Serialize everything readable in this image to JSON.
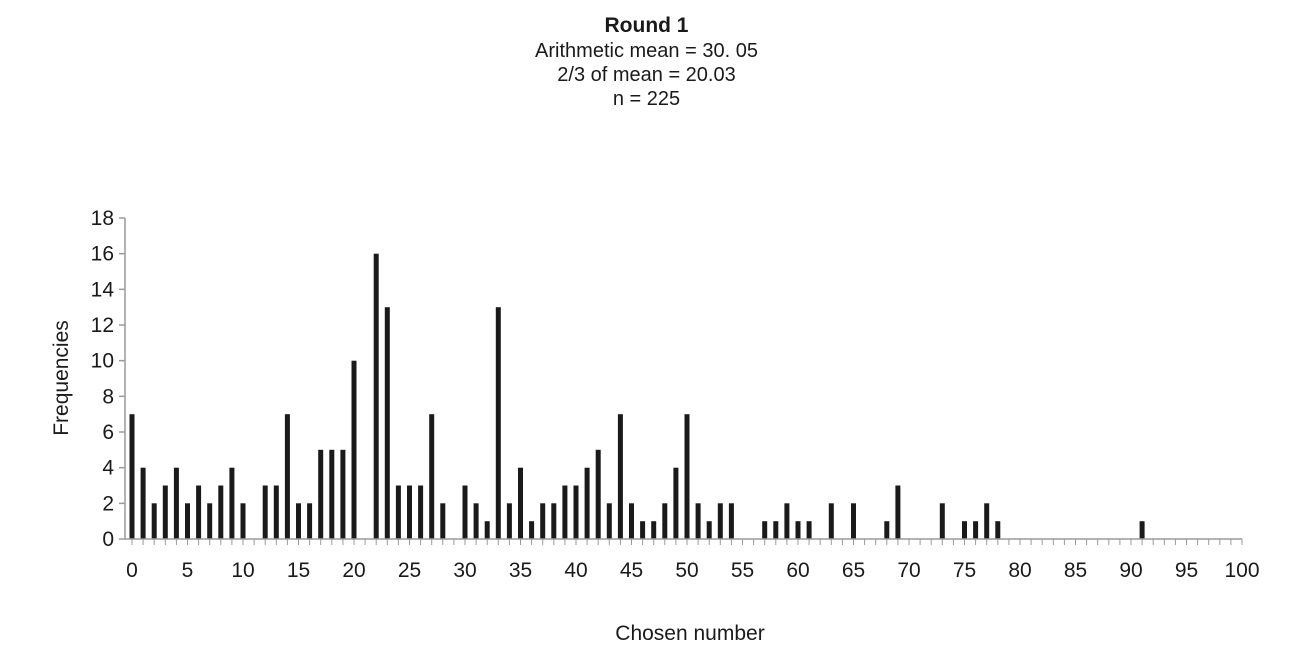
{
  "chart_data": {
    "type": "bar",
    "title": "Round 1",
    "subtitle_lines": [
      "Arithmetic mean = 30. 05",
      "2/3 of mean = 20.03",
      "n = 225"
    ],
    "xlabel": "Chosen number",
    "ylabel": "Frequencies",
    "xlim": [
      0,
      100
    ],
    "ylim": [
      0,
      18
    ],
    "x_ticks": [
      "0",
      "5",
      "10",
      "15",
      "20",
      "25",
      "30",
      "35",
      "40",
      "45",
      "50",
      "55",
      "60",
      "65",
      "70",
      "75",
      "80",
      "85",
      "90",
      "95",
      "100"
    ],
    "y_ticks": [
      "0",
      "2",
      "4",
      "6",
      "8",
      "10",
      "12",
      "14",
      "16",
      "18"
    ],
    "grid": false,
    "bar_color": "#1a1a1a",
    "x": [
      0,
      1,
      2,
      3,
      4,
      5,
      6,
      7,
      8,
      9,
      10,
      12,
      13,
      14,
      15,
      16,
      17,
      18,
      19,
      20,
      22,
      23,
      24,
      25,
      26,
      27,
      28,
      30,
      31,
      32,
      33,
      34,
      35,
      36,
      37,
      38,
      39,
      40,
      41,
      42,
      43,
      44,
      45,
      46,
      47,
      48,
      49,
      50,
      51,
      52,
      53,
      54,
      57,
      58,
      59,
      60,
      61,
      63,
      65,
      68,
      69,
      73,
      75,
      76,
      77,
      78,
      91
    ],
    "values": [
      7,
      4,
      2,
      3,
      4,
      2,
      3,
      2,
      3,
      4,
      2,
      3,
      3,
      7,
      2,
      2,
      5,
      5,
      5,
      10,
      16,
      13,
      3,
      3,
      3,
      7,
      2,
      3,
      2,
      1,
      13,
      2,
      4,
      1,
      2,
      2,
      3,
      3,
      4,
      5,
      2,
      7,
      2,
      1,
      1,
      2,
      4,
      7,
      2,
      1,
      2,
      2,
      1,
      1,
      2,
      1,
      1,
      2,
      2,
      1,
      3,
      2,
      1,
      1,
      2,
      1,
      1
    ]
  }
}
